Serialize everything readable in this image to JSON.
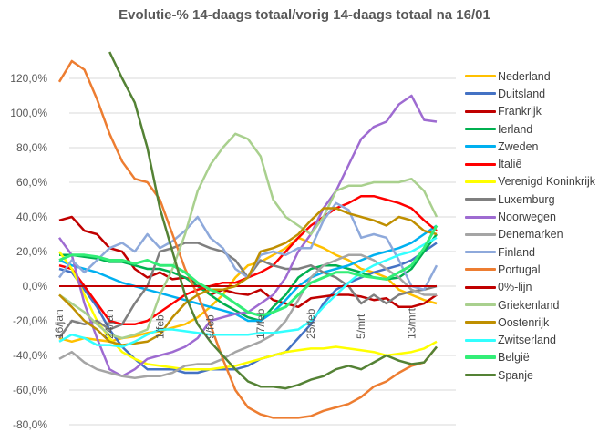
{
  "chart_data": {
    "type": "line",
    "title": "Evolutie-% 14-daags totaal/vorig 14-daags totaal na 16/01",
    "xlabel": "",
    "ylabel": "",
    "ylim": [
      -80,
      120
    ],
    "yticks": [
      "120,0%",
      "100,0%",
      "80,0%",
      "60,0%",
      "40,0%",
      "20,0%",
      "0,0%",
      "-20,0%",
      "-40,0%",
      "-60,0%",
      "-80,0%"
    ],
    "ytick_values": [
      120,
      100,
      80,
      60,
      40,
      20,
      0,
      -20,
      -40,
      -60,
      -80
    ],
    "xtick_labels": [
      "16/jan",
      "24/jan",
      "1/feb",
      "9/feb",
      "17/feb",
      "25/feb",
      "5/mrt",
      "13/mrt"
    ],
    "xtick_days": [
      0,
      8,
      16,
      24,
      32,
      40,
      48,
      56
    ],
    "x_days": [
      0,
      2,
      4,
      6,
      8,
      10,
      12,
      14,
      16,
      18,
      20,
      22,
      24,
      26,
      28,
      30,
      32,
      34,
      36,
      38,
      40,
      42,
      44,
      46,
      48,
      50,
      52,
      54,
      56,
      58,
      60
    ],
    "grid": true,
    "legend_position": "right",
    "series": [
      {
        "name": "Nederland",
        "color": "#FFC000",
        "width": 2.5,
        "values": [
          -30,
          -32,
          -30,
          -31,
          -32,
          -30,
          -29,
          -27,
          -26,
          -24,
          -22,
          -18,
          -12,
          -5,
          5,
          12,
          14,
          18,
          22,
          28,
          25,
          22,
          18,
          15,
          10,
          8,
          5,
          -2,
          -5,
          -8,
          -10
        ]
      },
      {
        "name": "Duitsland",
        "color": "#4472C4",
        "width": 2.5,
        "values": [
          10,
          8,
          -2,
          -12,
          -25,
          -35,
          -42,
          -48,
          -48,
          -48,
          -50,
          -50,
          -48,
          -48,
          -48,
          -46,
          -42,
          -40,
          -38,
          -30,
          -22,
          -10,
          -2,
          2,
          5,
          8,
          10,
          12,
          15,
          20,
          25
        ]
      },
      {
        "name": "Frankrijk",
        "color": "#C00000",
        "width": 2.5,
        "values": [
          38,
          40,
          32,
          30,
          22,
          20,
          10,
          5,
          8,
          4,
          5,
          2,
          -5,
          -2,
          -4,
          -5,
          -2,
          -8,
          -10,
          -12,
          -7,
          -6,
          -5,
          -5,
          -6,
          -8,
          -7,
          -12,
          -12,
          -10,
          -5
        ]
      },
      {
        "name": "Ierland",
        "color": "#00B050",
        "width": 2.5,
        "values": [
          18,
          18,
          17,
          16,
          14,
          14,
          12,
          10,
          10,
          8,
          5,
          0,
          -5,
          -10,
          -14,
          -18,
          -20,
          -12,
          -5,
          5,
          10,
          12,
          12,
          10,
          8,
          5,
          4,
          5,
          10,
          20,
          30
        ]
      },
      {
        "name": "Zweden",
        "color": "#00B0F0",
        "width": 2.5,
        "values": [
          15,
          12,
          10,
          8,
          5,
          2,
          0,
          -2,
          -4,
          -6,
          -8,
          -10,
          -12,
          -14,
          -16,
          -20,
          -20,
          -15,
          -8,
          0,
          5,
          8,
          10,
          12,
          15,
          18,
          20,
          22,
          25,
          30,
          35
        ]
      },
      {
        "name": "Italiê",
        "color": "#FF0000",
        "width": 2.5,
        "values": [
          12,
          10,
          0,
          -10,
          -20,
          -22,
          -22,
          -20,
          -15,
          -10,
          -5,
          -2,
          0,
          2,
          2,
          5,
          8,
          12,
          20,
          28,
          35,
          40,
          45,
          48,
          52,
          52,
          50,
          48,
          45,
          38,
          32
        ]
      },
      {
        "name": "Verenigd Koninkrijk",
        "color": "#FFFF00",
        "width": 2.5,
        "values": [
          20,
          10,
          -5,
          -20,
          -30,
          -38,
          -42,
          -45,
          -46,
          -47,
          -48,
          -48,
          -48,
          -47,
          -46,
          -44,
          -42,
          -40,
          -38,
          -37,
          -36,
          -36,
          -35,
          -36,
          -37,
          -38,
          -40,
          -39,
          -38,
          -36,
          -32
        ]
      },
      {
        "name": "Luxemburg",
        "color": "#7F7F7F",
        "width": 2.5,
        "values": [
          -30,
          -20,
          -22,
          -20,
          -25,
          -22,
          -10,
          0,
          20,
          22,
          25,
          25,
          22,
          20,
          15,
          5,
          15,
          12,
          10,
          10,
          12,
          8,
          5,
          0,
          -10,
          -5,
          -10,
          -5,
          -3,
          -2,
          0
        ]
      },
      {
        "name": "Noorwegen",
        "color": "#9E6BD1",
        "width": 2.5,
        "values": [
          28,
          18,
          -10,
          -30,
          -48,
          -52,
          -48,
          -42,
          -40,
          -38,
          -35,
          -30,
          -20,
          -18,
          -16,
          -15,
          -10,
          -5,
          5,
          20,
          30,
          45,
          55,
          70,
          85,
          92,
          95,
          105,
          110,
          96,
          95
        ]
      },
      {
        "name": "Denemarken",
        "color": "#A5A5A5",
        "width": 2.5,
        "values": [
          -42,
          -38,
          -44,
          -48,
          -50,
          -52,
          -53,
          -52,
          -52,
          -50,
          -46,
          -45,
          -45,
          -42,
          -38,
          -35,
          -32,
          -28,
          -20,
          -8,
          5,
          12,
          15,
          18,
          18,
          15,
          10,
          5,
          -2,
          -5,
          -5
        ]
      },
      {
        "name": "Finland",
        "color": "#8EA9DB",
        "width": 2.5,
        "values": [
          5,
          15,
          8,
          15,
          22,
          25,
          20,
          30,
          22,
          26,
          32,
          40,
          28,
          22,
          10,
          5,
          18,
          20,
          18,
          22,
          22,
          38,
          48,
          44,
          28,
          30,
          28,
          15,
          0,
          -2,
          12
        ]
      },
      {
        "name": "Portugal",
        "color": "#ED7D31",
        "width": 2.5,
        "values": [
          118,
          130,
          125,
          108,
          88,
          72,
          62,
          60,
          50,
          30,
          10,
          -5,
          -22,
          -42,
          -60,
          -70,
          -74,
          -76,
          -76,
          -76,
          -75,
          -72,
          -70,
          -68,
          -64,
          -58,
          -55,
          -50,
          -46,
          -44,
          -35
        ]
      },
      {
        "name": "0%-lijn",
        "color": "#C00000",
        "width": 2,
        "values": [
          0,
          0,
          0,
          0,
          0,
          0,
          0,
          0,
          0,
          0,
          0,
          0,
          0,
          0,
          0,
          0,
          0,
          0,
          0,
          0,
          0,
          0,
          0,
          0,
          0,
          0,
          0,
          0,
          0,
          0,
          0
        ]
      },
      {
        "name": "Griekenland",
        "color": "#A9D08E",
        "width": 2.5,
        "values": [
          -5,
          -10,
          -15,
          -22,
          -28,
          -30,
          -28,
          -25,
          -5,
          10,
          30,
          55,
          70,
          80,
          88,
          85,
          75,
          50,
          40,
          35,
          30,
          40,
          55,
          58,
          58,
          60,
          60,
          60,
          62,
          55,
          40
        ]
      },
      {
        "name": "Oostenrijk",
        "color": "#BF8F00",
        "width": 2.5,
        "values": [
          -5,
          -12,
          -20,
          -25,
          -32,
          -34,
          -33,
          -32,
          -28,
          -18,
          -10,
          -5,
          -2,
          -2,
          0,
          5,
          20,
          22,
          25,
          30,
          38,
          45,
          45,
          42,
          40,
          38,
          35,
          40,
          38,
          32,
          30
        ]
      },
      {
        "name": "Zwitserland",
        "color": "#33FFFF",
        "width": 2.5,
        "values": [
          -32,
          -28,
          -30,
          -34,
          -34,
          -35,
          -32,
          -28,
          -25,
          -25,
          -26,
          -27,
          -28,
          -28,
          -28,
          -28,
          -27,
          -27,
          -26,
          -25,
          -20,
          -12,
          -5,
          2,
          8,
          12,
          15,
          18,
          20,
          24,
          28
        ]
      },
      {
        "name": "België",
        "color": "#33EE77",
        "width": 3,
        "values": [
          15,
          18,
          18,
          17,
          15,
          15,
          13,
          15,
          12,
          12,
          8,
          2,
          -2,
          -5,
          -10,
          -15,
          -17,
          -15,
          -12,
          -5,
          2,
          5,
          8,
          8,
          6,
          5,
          4,
          8,
          12,
          22,
          35
        ]
      },
      {
        "name": "Spanje",
        "color": "#548235",
        "width": 2.5,
        "values": [
          null,
          null,
          null,
          null,
          136,
          120,
          106,
          80,
          45,
          20,
          -5,
          -22,
          -32,
          -40,
          -48,
          -55,
          -58,
          -58,
          -59,
          -57,
          -54,
          -52,
          -48,
          -46,
          -48,
          -44,
          -40,
          -43,
          -45,
          -44,
          -35
        ]
      }
    ]
  }
}
